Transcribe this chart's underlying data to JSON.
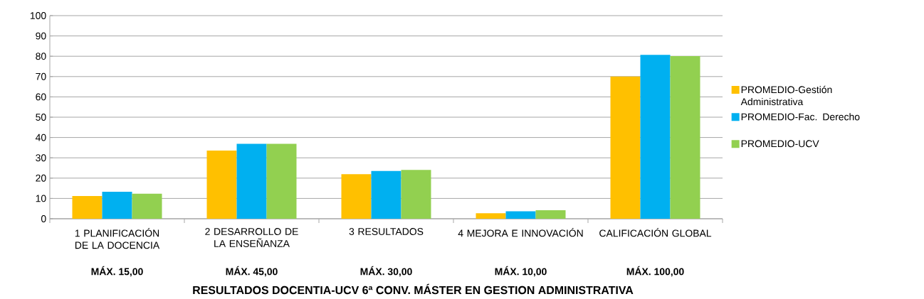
{
  "chart_data": {
    "type": "bar",
    "title": "RESULTADOS DOCENTIA-UCV 6ª CONV. MÁSTER EN GESTION ADMINISTRATIVA",
    "categories": [
      "1 PLANIFICACIÓN DE LA DOCENCIA",
      "2 DESARROLLO DE LA ENSEÑANZA",
      "3 RESULTADOS",
      "4 MEJORA E INNOVACIÓN",
      "CALIFICACIÓN GLOBAL"
    ],
    "series": [
      {
        "name": "PROMEDIO-Gestión Administrativa",
        "color": "#ffc000",
        "values": [
          11.2,
          33.6,
          21.9,
          2.7,
          70.0
        ]
      },
      {
        "name": "PROMEDIO-Fac. Derecho",
        "color": "#00b0f0",
        "values": [
          13.3,
          36.9,
          23.5,
          3.7,
          80.7
        ]
      },
      {
        "name": "PROMEDIO-UCV",
        "color": "#92d050",
        "values": [
          12.3,
          36.9,
          24.0,
          4.2,
          80.1
        ]
      }
    ],
    "annotations": [
      "MÁX. 15,00",
      "MÁX. 45,00",
      "MÁX. 30,00",
      "MÁX. 10,00",
      "MÁX. 100,00"
    ],
    "ylim": [
      0,
      100
    ],
    "yticks": [
      0,
      10,
      20,
      30,
      40,
      50,
      60,
      70,
      80,
      90,
      100
    ],
    "grid": "y",
    "legend": "right"
  }
}
